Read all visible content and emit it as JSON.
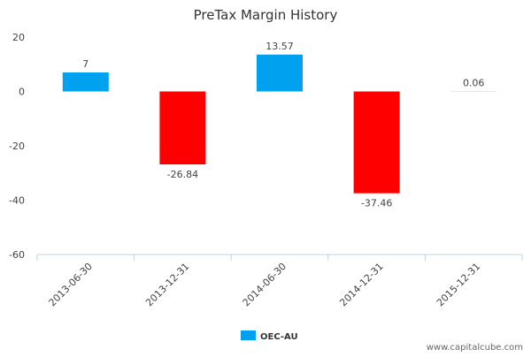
{
  "chart_data": {
    "type": "bar",
    "title": "PreTax Margin History",
    "categories": [
      "2013-06-30",
      "2013-12-31",
      "2014-06-30",
      "2014-12-31",
      "2015-12-31"
    ],
    "values": [
      7,
      -26.84,
      13.57,
      -37.46,
      0.06
    ],
    "value_labels": [
      "7",
      "-26.84",
      "13.57",
      "-37.46",
      "0.06"
    ],
    "y_ticks": [
      20,
      0,
      -20,
      -40,
      -60
    ],
    "ylim": [
      -60,
      20
    ],
    "xlabel": "",
    "ylabel": "",
    "grid": false,
    "series": [
      {
        "name": "OEC-AU",
        "values": [
          7,
          -26.84,
          13.57,
          -37.46,
          0.06
        ]
      }
    ],
    "legend": {
      "position": "bottom-center",
      "label": "OEC-AU"
    },
    "colors": {
      "positive": "#00a2f0",
      "negative": "#ff0000",
      "axis": "#c0d0e0",
      "legend_swatch": "#00a2f0"
    }
  },
  "watermark": "www.capitalcube.com"
}
